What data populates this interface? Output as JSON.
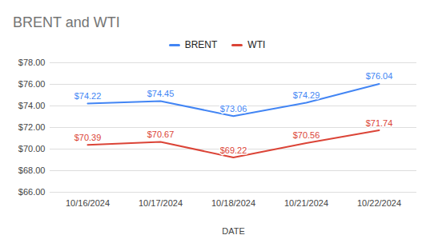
{
  "chart_data": {
    "type": "line",
    "title": "BRENT and WTI",
    "x_label": "DATE",
    "categories": [
      "10/16/2024",
      "10/17/2024",
      "10/18/2024",
      "10/21/2024",
      "10/22/2024"
    ],
    "series": [
      {
        "name": "BRENT",
        "color": "#4285f4",
        "values": [
          74.22,
          74.45,
          73.06,
          74.29,
          76.04
        ],
        "value_labels": [
          "$74.22",
          "$74.45",
          "$73.06",
          "$74.29",
          "$76.04"
        ]
      },
      {
        "name": "WTI",
        "color": "#db4437",
        "values": [
          70.39,
          70.67,
          69.22,
          70.56,
          71.74
        ],
        "value_labels": [
          "$70.39",
          "$70.67",
          "$69.22",
          "$70.56",
          "$71.74"
        ]
      }
    ],
    "ylim": [
      66,
      78
    ],
    "yticks": [
      {
        "value": 66,
        "label": "$66.00"
      },
      {
        "value": 68,
        "label": "$68.00"
      },
      {
        "value": 70,
        "label": "$70.00"
      },
      {
        "value": 72,
        "label": "$72.00"
      },
      {
        "value": 74,
        "label": "$74.00"
      },
      {
        "value": 76,
        "label": "$76.00"
      },
      {
        "value": 78,
        "label": "$78.00"
      }
    ],
    "grid": true,
    "legend": "top",
    "data_labels": true
  }
}
